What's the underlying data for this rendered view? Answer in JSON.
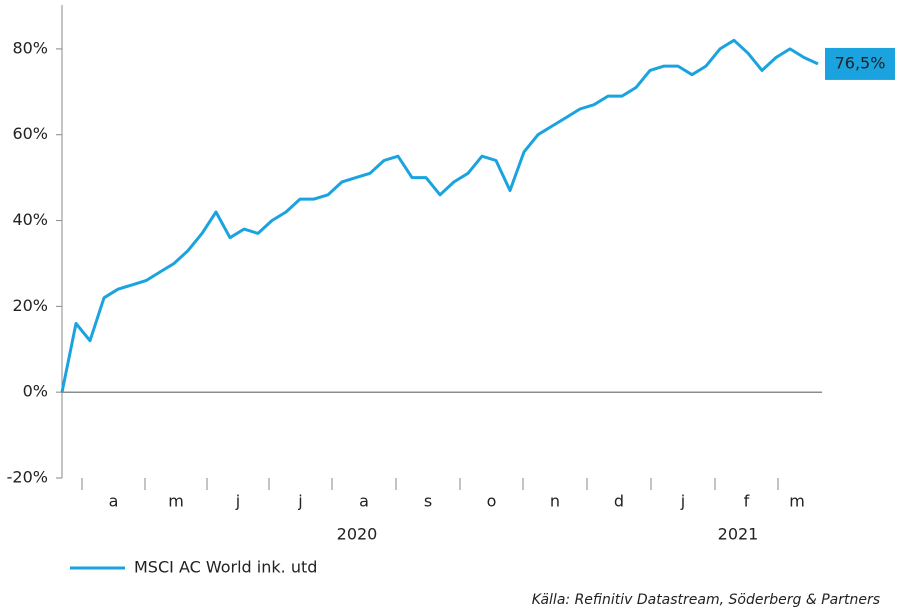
{
  "chart_data": {
    "type": "line",
    "months": [
      "a",
      "m",
      "j",
      "j",
      "a",
      "s",
      "o",
      "n",
      "d",
      "j",
      "f",
      "m"
    ],
    "years": [
      "2020",
      "2021"
    ],
    "series": [
      {
        "name": "MSCI AC World ink. utd",
        "color": "#1aa3df",
        "values": [
          0,
          16,
          12,
          22,
          24,
          25,
          26,
          28,
          30,
          33,
          37,
          42,
          36,
          38,
          37,
          40,
          42,
          45,
          45,
          46,
          49,
          50,
          51,
          54,
          55,
          50,
          50,
          46,
          49,
          51,
          55,
          54,
          47,
          56,
          60,
          62,
          64,
          66,
          67,
          69,
          69,
          71,
          75,
          76,
          76,
          74,
          76,
          80,
          82,
          79,
          75,
          78,
          80,
          78,
          76.5
        ],
        "end_label": "76,5%"
      }
    ],
    "ylim": [
      -20,
      90
    ],
    "yticks": [
      {
        "value": -20,
        "label": "-20%"
      },
      {
        "value": 0,
        "label": "0%"
      },
      {
        "value": 20,
        "label": "20%"
      },
      {
        "value": 40,
        "label": "40%"
      },
      {
        "value": 60,
        "label": "60%"
      },
      {
        "value": 80,
        "label": "80%"
      }
    ],
    "source": "Källa: Refinitiv Datastream, Söderberg & Partners"
  }
}
